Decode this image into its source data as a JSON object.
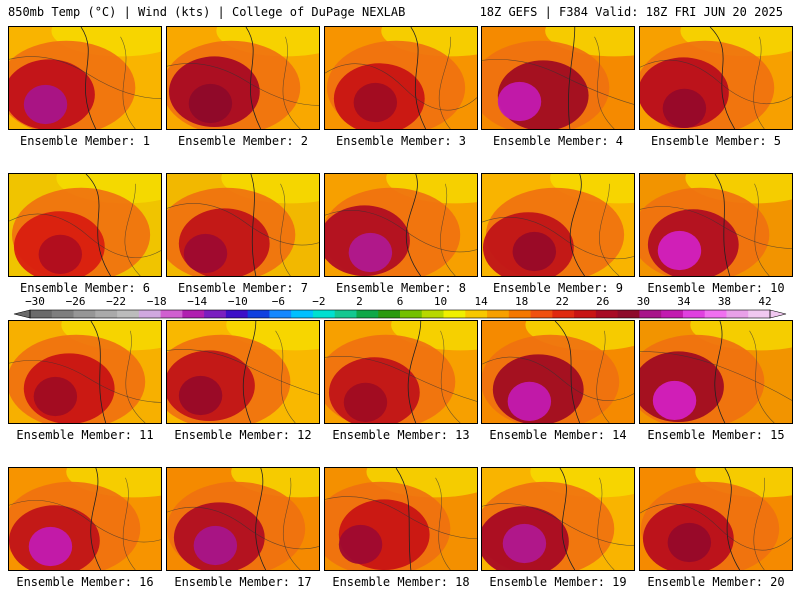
{
  "header": {
    "left": "850mb Temp (°C) | Wind (kts) | College of DuPage NEXLAB",
    "right": "18Z GEFS | F384 Valid: 18Z FRI JUN 20 2025"
  },
  "members": [
    {
      "label": "Ensemble Member: 1",
      "base": "#f9b400",
      "hot": "#c0101a",
      "core": "#a8148a"
    },
    {
      "label": "Ensemble Member: 2",
      "base": "#f9a800",
      "hot": "#a80a24",
      "core": "#8e0a2a"
    },
    {
      "label": "Ensemble Member: 3",
      "base": "#f79400",
      "hot": "#c81414",
      "core": "#a00c22"
    },
    {
      "label": "Ensemble Member: 4",
      "base": "#f58a00",
      "hot": "#a00c22",
      "core": "#c21ab0"
    },
    {
      "label": "Ensemble Member: 5",
      "base": "#f7a000",
      "hot": "#b80e1c",
      "core": "#96082a"
    },
    {
      "label": "Ensemble Member: 6",
      "base": "#f0c400",
      "hot": "#d81e10",
      "core": "#b00e20"
    },
    {
      "label": "Ensemble Member: 7",
      "base": "#f2b800",
      "hot": "#c01418",
      "core": "#9e0a30"
    },
    {
      "label": "Ensemble Member: 8",
      "base": "#f7a000",
      "hot": "#b00e22",
      "core": "#b01890"
    },
    {
      "label": "Ensemble Member: 9",
      "base": "#f9b400",
      "hot": "#c01418",
      "core": "#980a28"
    },
    {
      "label": "Ensemble Member: 10",
      "base": "#f29400",
      "hot": "#b00e22",
      "core": "#d220c0"
    },
    {
      "label": "Ensemble Member: 11",
      "base": "#f7b000",
      "hot": "#c81414",
      "core": "#a00c22"
    },
    {
      "label": "Ensemble Member: 12",
      "base": "#f9b800",
      "hot": "#c01418",
      "core": "#980a28"
    },
    {
      "label": "Ensemble Member: 13",
      "base": "#f7a000",
      "hot": "#c01418",
      "core": "#a00c22"
    },
    {
      "label": "Ensemble Member: 14",
      "base": "#f58a00",
      "hot": "#a00c22",
      "core": "#c21ab0"
    },
    {
      "label": "Ensemble Member: 15",
      "base": "#f29400",
      "hot": "#a00c22",
      "core": "#d220c0"
    },
    {
      "label": "Ensemble Member: 16",
      "base": "#f79400",
      "hot": "#c01418",
      "core": "#c21ab0"
    },
    {
      "label": "Ensemble Member: 17",
      "base": "#f58a00",
      "hot": "#b00e22",
      "core": "#a8148a"
    },
    {
      "label": "Ensemble Member: 18",
      "base": "#f49000",
      "hot": "#c81414",
      "core": "#9e0a30"
    },
    {
      "label": "Ensemble Member: 19",
      "base": "#f9b400",
      "hot": "#a80a24",
      "core": "#b01890"
    },
    {
      "label": "Ensemble Member: 20",
      "base": "#f58a00",
      "hot": "#b80e1c",
      "core": "#96082a"
    }
  ],
  "colorbar": {
    "labels": [
      "−30",
      "−26",
      "−22",
      "−18",
      "−14",
      "−10",
      "−6",
      "−2",
      "2",
      "6",
      "10",
      "14",
      "18",
      "22",
      "26",
      "30",
      "34",
      "38",
      "42"
    ],
    "colors": [
      "#6a6a6a",
      "#7e7e7e",
      "#969696",
      "#aaaaaa",
      "#bcbcbc",
      "#d0a8e0",
      "#d060d0",
      "#b020b0",
      "#7a20c0",
      "#3c10c8",
      "#1040e0",
      "#1488ff",
      "#00c0ff",
      "#00e0d0",
      "#14c890",
      "#0fa848",
      "#2a9a10",
      "#74c000",
      "#b8d800",
      "#f0f000",
      "#f8c800",
      "#f7a000",
      "#f47800",
      "#f05010",
      "#e02a10",
      "#c81414",
      "#a80a24",
      "#8e0a2a",
      "#a8148a",
      "#c21ab0",
      "#e040e0",
      "#f070f0",
      "#e8a0e8",
      "#f0c8f0"
    ]
  }
}
